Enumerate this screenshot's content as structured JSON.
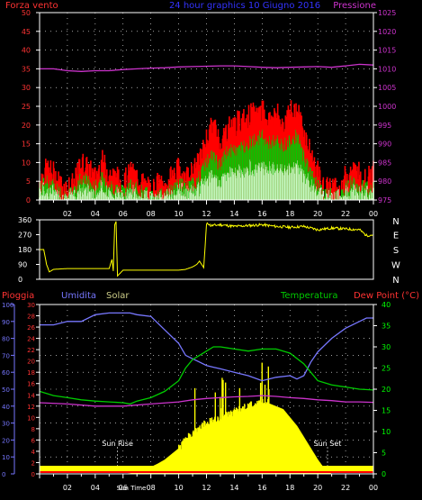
{
  "colors": {
    "background": "#000000",
    "axis": "#ffffff",
    "grid": "#ffffff",
    "wind_gust": "#ff0000",
    "wind_avg": "#00cc00",
    "wind_min": "#ccffcc",
    "pressure": "#cc33cc",
    "direction": "#ffff00",
    "rain": "#ff0000",
    "humidity": "#7777ff",
    "solar": "#ffff00",
    "temperature": "#00cc00",
    "dewpoint": "#cc33cc",
    "left_tick": "#ff3333",
    "right_tick_pressure": "#cc33cc",
    "hum_tick": "#7777ff",
    "right_tick_temp": "#00ff00"
  },
  "chart_data": [
    {
      "type": "line",
      "title": "24 hour graphics  10 Giugno 2016",
      "ylabel_left": "Forza vento",
      "ylabel_right": "Pressione",
      "ylim_left": [
        0,
        50
      ],
      "ylim_right": [
        975,
        1025
      ],
      "left_ticks": [
        "0",
        "5",
        "10",
        "15",
        "20",
        "25",
        "30",
        "35",
        "40",
        "45",
        "50"
      ],
      "right_ticks": [
        "975",
        "980",
        "985",
        "990",
        "995",
        "1000",
        "1005",
        "1010",
        "1015",
        "1020",
        "1025"
      ],
      "xlim": [
        0,
        24
      ],
      "x_ticks": [
        "02",
        "04",
        "06",
        "08",
        "10",
        "12",
        "14",
        "16",
        "18",
        "20",
        "22",
        "00"
      ],
      "grid": true,
      "series": [
        {
          "x": [
            0,
            1,
            2,
            3,
            4,
            5,
            6,
            7,
            8,
            9,
            10,
            11,
            12,
            13,
            14,
            15,
            16,
            17,
            18,
            19,
            20,
            21,
            22,
            23,
            24
          ],
          "values": [
            1010,
            1010,
            1009.5,
            1009.3,
            1009.5,
            1009.5,
            1009.8,
            1010,
            1010.2,
            1010.3,
            1010.5,
            1010.6,
            1010.7,
            1010.8,
            1010.8,
            1010.6,
            1010.4,
            1010.3,
            1010.4,
            1010.5,
            1010.6,
            1010.4,
            1010.8,
            1011.2,
            1011
          ]
        },
        {
          "x": [
            0,
            0.5,
            1,
            1.5,
            2,
            2.5,
            3,
            3.5,
            4,
            4.5,
            5,
            5.5,
            6,
            6.5,
            7,
            7.5,
            8,
            8.5,
            9,
            9.5,
            10,
            10.5,
            11,
            11.5,
            12,
            12.5,
            13,
            13.5,
            14,
            14.5,
            15,
            15.5,
            16,
            16.5,
            17,
            17.5,
            18,
            18.5,
            19,
            19.5,
            20,
            20.5,
            21,
            21.5,
            22,
            22.5,
            23,
            23.5,
            24
          ],
          "values": [
            3,
            5,
            4,
            2,
            1,
            2,
            6,
            5,
            3,
            6,
            4,
            3,
            2,
            4,
            3,
            2,
            1,
            2,
            1,
            3,
            5,
            3,
            4,
            6,
            10,
            12,
            9,
            13,
            13,
            14,
            15,
            16,
            17,
            15,
            16,
            14,
            16,
            17,
            12,
            8,
            4,
            1,
            2,
            1,
            3,
            5,
            4,
            3,
            4
          ]
        },
        {
          "x": [
            0,
            0.5,
            1,
            1.5,
            2,
            2.5,
            3,
            3.5,
            4,
            4.5,
            5,
            5.5,
            6,
            6.5,
            7,
            7.5,
            8,
            8.5,
            9,
            9.5,
            10,
            10.5,
            11,
            11.5,
            12,
            12.5,
            13,
            13.5,
            14,
            14.5,
            15,
            15.5,
            16,
            16.5,
            17,
            17.5,
            18,
            18.5,
            19,
            19.5,
            20,
            20.5,
            21,
            21.5,
            22,
            22.5,
            23,
            23.5,
            24
          ],
          "values": [
            5,
            8,
            7,
            4,
            3,
            4,
            10,
            8,
            6,
            10,
            7,
            6,
            4,
            7,
            6,
            4,
            2,
            4,
            3,
            6,
            8,
            6,
            7,
            10,
            16,
            20,
            15,
            19,
            20,
            21,
            22,
            23,
            24,
            21,
            23,
            20,
            23,
            24,
            18,
            12,
            7,
            2,
            4,
            2,
            6,
            8,
            7,
            5,
            7
          ]
        }
      ]
    },
    {
      "type": "line",
      "ylabel_right": [
        "N",
        "W",
        "S",
        "E",
        "N"
      ],
      "ylim": [
        0,
        360
      ],
      "left_ticks": [
        "0",
        "90",
        "180",
        "270",
        "360"
      ],
      "xlim": [
        0,
        24
      ],
      "series": [
        {
          "x": [
            0,
            0.3,
            0.5,
            0.7,
            1,
            2,
            3,
            4,
            5,
            5.2,
            5.3,
            5.4,
            5.5,
            5.6,
            6,
            7,
            8,
            9,
            10,
            10.5,
            11,
            11.3,
            11.5,
            11.8,
            12,
            12.1,
            12.3,
            13,
            14,
            15,
            16,
            17,
            18,
            19,
            20,
            21,
            22,
            23,
            23.5,
            24
          ],
          "values": [
            180,
            180,
            90,
            45,
            60,
            65,
            65,
            65,
            65,
            120,
            50,
            330,
            350,
            20,
            55,
            55,
            55,
            55,
            55,
            60,
            75,
            90,
            110,
            70,
            330,
            340,
            325,
            330,
            320,
            325,
            330,
            320,
            315,
            320,
            300,
            310,
            305,
            300,
            265,
            270
          ]
        }
      ]
    },
    {
      "type": "area",
      "labels": {
        "rain": "Pioggia",
        "humidity": "Umidita",
        "solar": "Solar",
        "temperature": "Temperatura",
        "dewpoint": "Dew Point (°C)"
      },
      "hum_ticks": [
        "0",
        "10",
        "20",
        "30",
        "40",
        "50",
        "60",
        "70",
        "80",
        "90",
        "100"
      ],
      "solar_ticks": [
        "0",
        "2",
        "4",
        "6",
        "8",
        "10",
        "12",
        "14",
        "16",
        "18",
        "20",
        "22",
        "24",
        "26",
        "28",
        "30"
      ],
      "temp_ticks": [
        "0",
        "5",
        "10",
        "15",
        "20",
        "25",
        "30",
        "35",
        "40"
      ],
      "ylim_humidity": [
        0,
        100
      ],
      "ylim_temp": [
        0,
        40
      ],
      "xlim": [
        0,
        24
      ],
      "x_ticks": [
        "02",
        "04",
        "06",
        "08",
        "10",
        "12",
        "14",
        "16",
        "18",
        "20",
        "22",
        "00"
      ],
      "annotations": [
        "Sun Rise",
        "Sun Set",
        "Sun Time"
      ],
      "series": [
        {
          "x": [
            0,
            1,
            2,
            3,
            4,
            5,
            6,
            6.5,
            7,
            8,
            9,
            10,
            10.5,
            11,
            11.5,
            12,
            12.5,
            13,
            14,
            15,
            16,
            17,
            18,
            18.5,
            19,
            19.5,
            20,
            21,
            22,
            23,
            23.5,
            24
          ],
          "values": [
            88,
            88,
            90,
            90,
            94,
            95,
            95,
            95,
            94,
            93,
            85,
            77,
            70,
            68,
            66,
            64,
            63,
            62,
            60,
            58,
            55,
            57,
            58,
            56,
            58,
            66,
            72,
            80,
            86,
            90,
            92,
            92
          ]
        },
        {
          "x": [
            0,
            1,
            2,
            3,
            4,
            5,
            6,
            6.5,
            7,
            8,
            9,
            10,
            10.5,
            11,
            11.5,
            12,
            12.5,
            13,
            14,
            15,
            16,
            17,
            18,
            19,
            19.5,
            20,
            21,
            22,
            23,
            24
          ],
          "values": [
            19.5,
            18.5,
            18,
            17.5,
            17.2,
            17,
            16.8,
            16.5,
            17.2,
            18,
            19.5,
            22,
            25,
            27,
            28,
            29,
            30,
            30,
            29.5,
            29,
            29.5,
            29.5,
            28.5,
            26,
            24,
            22,
            21,
            20.5,
            20,
            19.8
          ]
        },
        {
          "x": [
            0,
            2,
            4,
            6,
            8,
            10,
            11,
            12,
            13,
            14,
            15,
            16,
            17,
            18,
            19,
            20,
            21,
            22,
            23,
            24
          ],
          "values": [
            16.8,
            16.5,
            16,
            16,
            16.5,
            17,
            17.5,
            17.8,
            18,
            18.2,
            18.3,
            18.5,
            18.3,
            18,
            17.8,
            17.5,
            17.3,
            17,
            17,
            16.9
          ]
        },
        {
          "x": [
            0,
            5.5,
            6,
            6.5,
            7,
            7.5,
            8,
            8.5,
            9,
            9.5,
            10,
            10.5,
            11,
            11.5,
            12,
            12.5,
            13,
            13.5,
            14,
            14.5,
            15,
            15.5,
            16,
            16.5,
            17,
            17.5,
            18,
            18.5,
            19,
            19.5,
            20,
            20.5,
            21,
            24
          ],
          "values": [
            0,
            0,
            0.05,
            0.1,
            0.3,
            0.6,
            1.2,
            1.8,
            2.5,
            3.5,
            4.5,
            6,
            7,
            8,
            9,
            9.5,
            10,
            10.5,
            11,
            11.5,
            12,
            12.5,
            12.7,
            12.5,
            12,
            11.5,
            10,
            8.5,
            6.5,
            4.5,
            2.5,
            0.8,
            0,
            0
          ]
        }
      ]
    }
  ]
}
